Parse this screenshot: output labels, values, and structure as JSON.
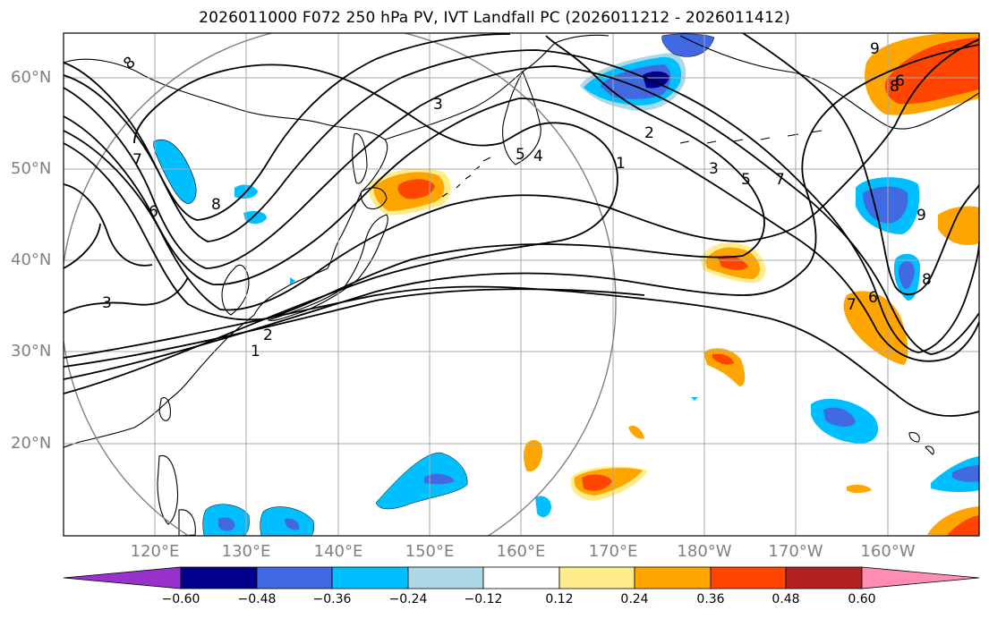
{
  "title": "2026011000 F072 250 hPa PV, IVT Landfall PC (2026011212 - 2026011412)",
  "lat_labels": [
    "60°N",
    "50°N",
    "40°N",
    "30°N",
    "20°N"
  ],
  "lon_labels": [
    "120°E",
    "130°E",
    "140°E",
    "150°E",
    "160°E",
    "170°E",
    "180°W",
    "170°W",
    "160°W"
  ],
  "colorbar": {
    "ticks": [
      "−0.60",
      "−0.48",
      "−0.36",
      "−0.24",
      "−0.12",
      "0.12",
      "0.24",
      "0.36",
      "0.48",
      "0.60"
    ],
    "colors": [
      "#9932cc",
      "#00008b",
      "#4169e1",
      "#00bfff",
      "#add8e6",
      "#ffffff",
      "#ffec8b",
      "#ffa500",
      "#ff4500",
      "#b22222",
      "#ff8cb4"
    ]
  },
  "contour_labels": [
    "8",
    "7",
    "6",
    "8",
    "3",
    "3",
    "2",
    "1",
    "3",
    "5",
    "4",
    "2",
    "1",
    "3",
    "5",
    "7",
    "9",
    "6",
    "8",
    "7",
    "6",
    "9",
    "8"
  ],
  "chart_data": {
    "type": "map",
    "extent_lon": [
      110,
      210
    ],
    "extent_lat": [
      10,
      65
    ],
    "field_shaded": "IVT landfall principal component (regression)",
    "field_contoured": "250 hPa PV",
    "shading_levels": [
      -0.6,
      -0.48,
      -0.36,
      -0.24,
      -0.12,
      0.12,
      0.24,
      0.36,
      0.48,
      0.6
    ]
  }
}
